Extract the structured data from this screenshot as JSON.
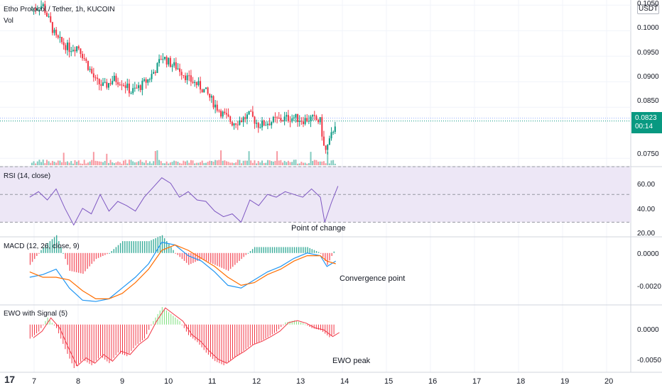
{
  "header": {
    "title": "Etho Protocol / Tether, 1h, KUCOIN",
    "vol_label": "Vol",
    "currency": "USDT"
  },
  "price_tag": {
    "price": "0.0823",
    "countdown": "00:14",
    "color": "#089981"
  },
  "panes": {
    "rsi": {
      "title": "RSI (14, close)",
      "annotation": "Point of change",
      "ticks": [
        "60.00",
        "40.00",
        "20.00"
      ]
    },
    "macd": {
      "title": "MACD (12, 26, close, 9)",
      "annotation": "Convergence point",
      "ticks": [
        "0.0000",
        "-0.0020"
      ]
    },
    "ewo": {
      "title": "EWO with Signal (5)",
      "annotation": "EWO peak",
      "ticks": [
        "0.0000",
        "-0.0050"
      ]
    }
  },
  "price_ticks": [
    "0.1050",
    "0.1000",
    "0.0950",
    "0.0900",
    "0.0850",
    "0.0750"
  ],
  "date_ticks": [
    "7",
    "8",
    "9",
    "10",
    "11",
    "12",
    "13",
    "14",
    "15",
    "16",
    "17",
    "18",
    "19",
    "20"
  ],
  "watermark": "17",
  "colors": {
    "up": "#089981",
    "down": "#f23645",
    "rsi_line": "#7e57c2",
    "rsi_band": "#ede7f6",
    "macd_line": "#2196f3",
    "signal_line": "#ff6d00",
    "ewo_up": "#7ee07e",
    "ewo_down": "#f23645"
  },
  "chart_data": [
    {
      "type": "candlestick",
      "title": "Etho Protocol / Tether, 1h, KUCOIN",
      "x_dates": [
        "7",
        "8",
        "9",
        "10",
        "11",
        "12",
        "13",
        "14",
        "15",
        "16",
        "17",
        "18",
        "19",
        "20"
      ],
      "ylim": [
        0.0735,
        0.106
      ],
      "close_path": [
        [
          6.9,
          0.104
        ],
        [
          7.2,
          0.105
        ],
        [
          7.5,
          0.0985
        ],
        [
          7.8,
          0.0965
        ],
        [
          8.0,
          0.097
        ],
        [
          8.2,
          0.0935
        ],
        [
          8.4,
          0.09
        ],
        [
          8.6,
          0.089
        ],
        [
          8.8,
          0.0905
        ],
        [
          9.0,
          0.09
        ],
        [
          9.2,
          0.088
        ],
        [
          9.4,
          0.089
        ],
        [
          9.6,
          0.0905
        ],
        [
          9.8,
          0.093
        ],
        [
          9.9,
          0.095
        ],
        [
          10.1,
          0.0935
        ],
        [
          10.3,
          0.0925
        ],
        [
          10.5,
          0.0905
        ],
        [
          10.7,
          0.0895
        ],
        [
          10.9,
          0.088
        ],
        [
          11.1,
          0.0855
        ],
        [
          11.3,
          0.0835
        ],
        [
          11.5,
          0.082
        ],
        [
          11.7,
          0.0825
        ],
        [
          11.9,
          0.0835
        ],
        [
          12.1,
          0.0815
        ],
        [
          12.3,
          0.082
        ],
        [
          12.5,
          0.0825
        ],
        [
          12.7,
          0.0828
        ],
        [
          12.9,
          0.083
        ],
        [
          13.1,
          0.0825
        ],
        [
          13.3,
          0.0828
        ],
        [
          13.5,
          0.0822
        ],
        [
          13.6,
          0.076
        ],
        [
          13.7,
          0.078
        ],
        [
          13.85,
          0.0823
        ]
      ],
      "last_price": 0.0823
    },
    {
      "type": "line",
      "title": "RSI (14, close)",
      "ylim": [
        20,
        70
      ],
      "levels": [
        30,
        50,
        70
      ],
      "series": [
        {
          "values": [
            [
              6.9,
              48
            ],
            [
              7.1,
              52
            ],
            [
              7.3,
              46
            ],
            [
              7.5,
              54
            ],
            [
              7.7,
              40
            ],
            [
              7.9,
              28
            ],
            [
              8.1,
              40
            ],
            [
              8.3,
              36
            ],
            [
              8.5,
              50
            ],
            [
              8.7,
              38
            ],
            [
              8.9,
              45
            ],
            [
              9.1,
              42
            ],
            [
              9.3,
              38
            ],
            [
              9.5,
              48
            ],
            [
              9.7,
              55
            ],
            [
              9.9,
              62
            ],
            [
              10.1,
              58
            ],
            [
              10.3,
              48
            ],
            [
              10.5,
              52
            ],
            [
              10.7,
              46
            ],
            [
              10.9,
              45
            ],
            [
              11.1,
              38
            ],
            [
              11.3,
              34
            ],
            [
              11.5,
              36
            ],
            [
              11.7,
              30
            ],
            [
              11.9,
              46
            ],
            [
              12.1,
              42
            ],
            [
              12.3,
              50
            ],
            [
              12.5,
              48
            ],
            [
              12.7,
              52
            ],
            [
              12.9,
              50
            ],
            [
              13.1,
              48
            ],
            [
              13.3,
              54
            ],
            [
              13.5,
              48
            ],
            [
              13.6,
              30
            ],
            [
              13.75,
              44
            ],
            [
              13.9,
              56
            ]
          ]
        }
      ],
      "annotations": [
        "Point of change"
      ]
    },
    {
      "type": "line",
      "title": "MACD (12, 26, close, 9)",
      "ylim": [
        -0.0038,
        0.0012
      ],
      "series": [
        {
          "values": [
            [
              6.9,
              -0.0018
            ],
            [
              7.2,
              -0.0016
            ],
            [
              7.5,
              -0.0012
            ],
            [
              7.8,
              -0.0026
            ],
            [
              8.1,
              -0.0035
            ],
            [
              8.4,
              -0.0036
            ],
            [
              8.7,
              -0.0034
            ],
            [
              9.0,
              -0.0026
            ],
            [
              9.3,
              -0.0018
            ],
            [
              9.6,
              -0.0008
            ],
            [
              9.9,
              0.0008
            ],
            [
              10.2,
              0.0006
            ],
            [
              10.5,
              -0.0002
            ],
            [
              10.8,
              -0.0006
            ],
            [
              11.1,
              -0.0014
            ],
            [
              11.4,
              -0.0024
            ],
            [
              11.7,
              -0.0026
            ],
            [
              12.0,
              -0.002
            ],
            [
              12.3,
              -0.0014
            ],
            [
              12.6,
              -0.001
            ],
            [
              12.9,
              -0.0004
            ],
            [
              13.2,
              0.0
            ],
            [
              13.5,
              -0.0002
            ],
            [
              13.65,
              -0.001
            ],
            [
              13.85,
              -0.0006
            ]
          ]
        },
        {
          "values": [
            [
              6.9,
              -0.0014
            ],
            [
              7.2,
              -0.0018
            ],
            [
              7.5,
              -0.0018
            ],
            [
              7.8,
              -0.002
            ],
            [
              8.1,
              -0.0028
            ],
            [
              8.4,
              -0.0034
            ],
            [
              8.7,
              -0.0034
            ],
            [
              9.0,
              -0.003
            ],
            [
              9.3,
              -0.0022
            ],
            [
              9.6,
              -0.0012
            ],
            [
              9.9,
              0.0002
            ],
            [
              10.2,
              0.0006
            ],
            [
              10.5,
              0.0002
            ],
            [
              10.8,
              -0.0004
            ],
            [
              11.1,
              -0.001
            ],
            [
              11.4,
              -0.0018
            ],
            [
              11.7,
              -0.0024
            ],
            [
              12.0,
              -0.0022
            ],
            [
              12.3,
              -0.0016
            ],
            [
              12.6,
              -0.0012
            ],
            [
              12.9,
              -0.0006
            ],
            [
              13.2,
              -0.0002
            ],
            [
              13.5,
              -0.0002
            ],
            [
              13.65,
              -0.0006
            ],
            [
              13.85,
              -0.0008
            ]
          ]
        }
      ],
      "annotations": [
        "Convergence point"
      ]
    },
    {
      "type": "bar",
      "title": "EWO with Signal (5)",
      "ylim": [
        -0.0068,
        0.0028
      ],
      "series": [
        {
          "values": [
            [
              6.9,
              -0.002
            ],
            [
              7.1,
              -0.001
            ],
            [
              7.3,
              0.001
            ],
            [
              7.5,
              -0.0005
            ],
            [
              7.7,
              -0.0035
            ],
            [
              7.9,
              -0.0062
            ],
            [
              8.1,
              -0.005
            ],
            [
              8.3,
              -0.0058
            ],
            [
              8.5,
              -0.0045
            ],
            [
              8.7,
              -0.0055
            ],
            [
              8.9,
              -0.004
            ],
            [
              9.1,
              -0.0045
            ],
            [
              9.3,
              -0.003
            ],
            [
              9.5,
              -0.002
            ],
            [
              9.7,
              0.0005
            ],
            [
              9.9,
              0.0025
            ],
            [
              10.1,
              0.0015
            ],
            [
              10.3,
              0.0005
            ],
            [
              10.5,
              -0.0015
            ],
            [
              10.7,
              -0.0025
            ],
            [
              10.9,
              -0.004
            ],
            [
              11.1,
              -0.0052
            ],
            [
              11.3,
              -0.0058
            ],
            [
              11.5,
              -0.0048
            ],
            [
              11.7,
              -0.004
            ],
            [
              11.9,
              -0.003
            ],
            [
              12.1,
              -0.0025
            ],
            [
              12.3,
              -0.0018
            ],
            [
              12.5,
              -0.001
            ],
            [
              12.7,
              0.0003
            ],
            [
              12.9,
              0.0006
            ],
            [
              13.1,
              0.0002
            ],
            [
              13.3,
              -0.0005
            ],
            [
              13.5,
              -0.0008
            ],
            [
              13.7,
              -0.0018
            ],
            [
              13.85,
              -0.0012
            ]
          ]
        }
      ],
      "annotations": [
        "EWO peak"
      ]
    }
  ]
}
